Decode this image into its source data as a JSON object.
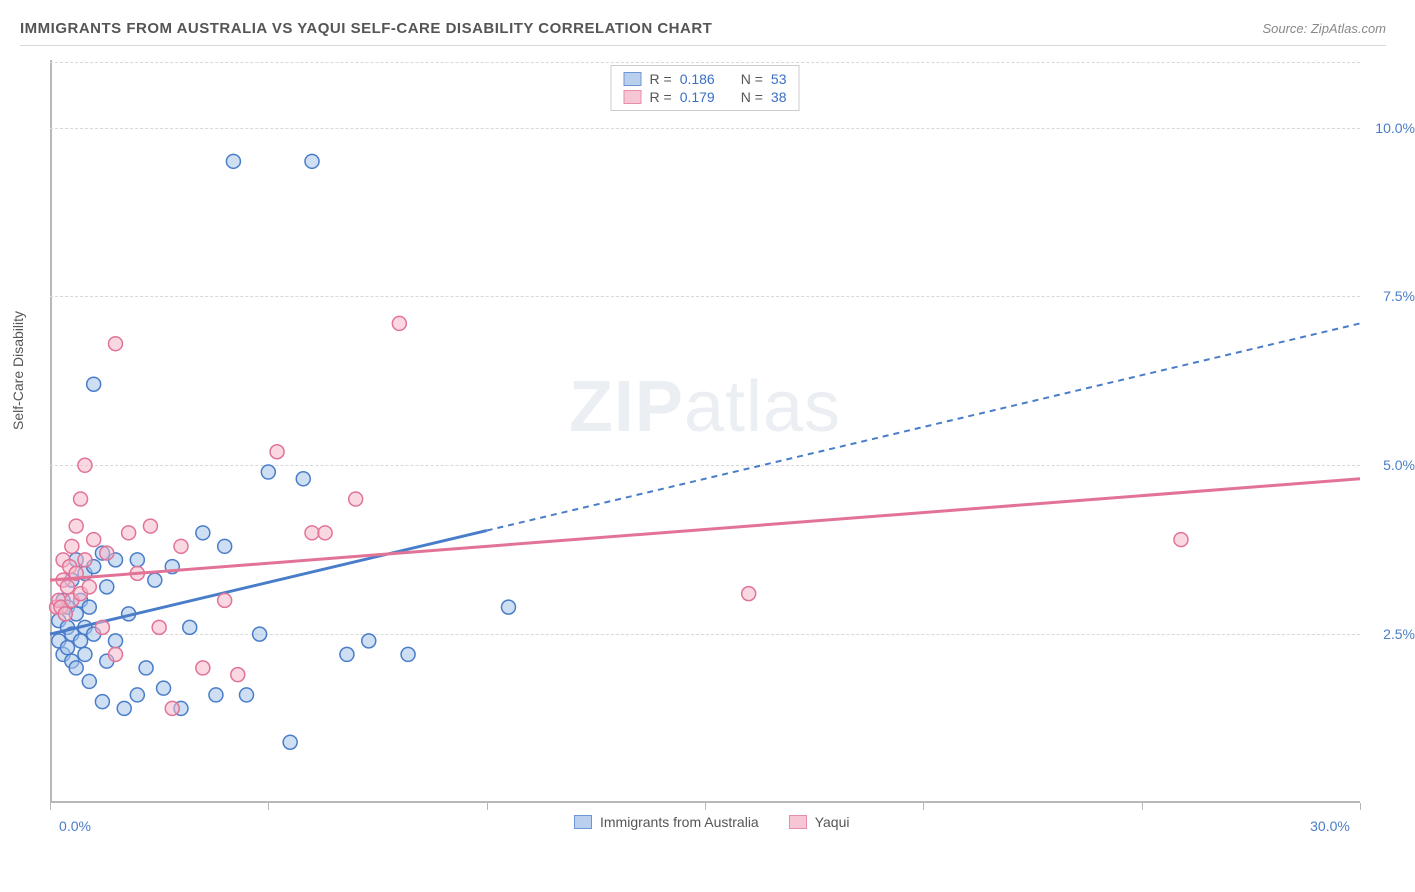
{
  "title": "IMMIGRANTS FROM AUSTRALIA VS YAQUI SELF-CARE DISABILITY CORRELATION CHART",
  "source": "Source: ZipAtlas.com",
  "y_axis_label": "Self-Care Disability",
  "watermark_bold": "ZIP",
  "watermark_rest": "atlas",
  "chart": {
    "type": "scatter",
    "xlim": [
      0,
      30
    ],
    "ylim": [
      0,
      11
    ],
    "x_ticks": [
      0,
      5,
      10,
      15,
      20,
      25,
      30
    ],
    "x_tick_labels": {
      "0": "0.0%",
      "30": "30.0%"
    },
    "y_gridlines": [
      2.5,
      5.0,
      7.5,
      10.0
    ],
    "y_tick_labels": {
      "2.5": "2.5%",
      "5.0": "5.0%",
      "7.5": "7.5%",
      "10.0": "10.0%"
    },
    "background_color": "#ffffff",
    "grid_color": "#d8d8d8",
    "axis_color": "#b8b8b8",
    "tick_label_color": "#4a7dc9",
    "marker_radius": 7,
    "marker_stroke_width": 1.5,
    "marker_fill_opacity": 0.25,
    "series": [
      {
        "name": "Immigrants from Australia",
        "color_stroke": "#4a7dc9",
        "color_fill": "#a7c4ea",
        "R": "0.186",
        "N": "53",
        "trendline": {
          "x1": 0,
          "y1": 2.5,
          "x2": 30,
          "y2": 7.1,
          "solid_until_x": 10
        },
        "points": [
          [
            0.2,
            2.4
          ],
          [
            0.2,
            2.7
          ],
          [
            0.3,
            2.2
          ],
          [
            0.3,
            3.0
          ],
          [
            0.4,
            2.3
          ],
          [
            0.4,
            2.6
          ],
          [
            0.4,
            2.9
          ],
          [
            0.5,
            2.1
          ],
          [
            0.5,
            2.5
          ],
          [
            0.5,
            3.3
          ],
          [
            0.6,
            2.0
          ],
          [
            0.6,
            2.8
          ],
          [
            0.6,
            3.6
          ],
          [
            0.7,
            2.4
          ],
          [
            0.7,
            3.0
          ],
          [
            0.8,
            2.2
          ],
          [
            0.8,
            2.6
          ],
          [
            0.8,
            3.4
          ],
          [
            0.9,
            1.8
          ],
          [
            0.9,
            2.9
          ],
          [
            1.0,
            2.5
          ],
          [
            1.0,
            3.5
          ],
          [
            1.0,
            6.2
          ],
          [
            1.2,
            1.5
          ],
          [
            1.2,
            3.7
          ],
          [
            1.3,
            2.1
          ],
          [
            1.3,
            3.2
          ],
          [
            1.5,
            2.4
          ],
          [
            1.5,
            3.6
          ],
          [
            1.7,
            1.4
          ],
          [
            1.8,
            2.8
          ],
          [
            2.0,
            1.6
          ],
          [
            2.0,
            3.6
          ],
          [
            2.2,
            2.0
          ],
          [
            2.4,
            3.3
          ],
          [
            2.6,
            1.7
          ],
          [
            2.8,
            3.5
          ],
          [
            3.0,
            1.4
          ],
          [
            3.2,
            2.6
          ],
          [
            3.5,
            4.0
          ],
          [
            3.8,
            1.6
          ],
          [
            4.0,
            3.8
          ],
          [
            4.2,
            9.5
          ],
          [
            4.5,
            1.6
          ],
          [
            4.8,
            2.5
          ],
          [
            5.0,
            4.9
          ],
          [
            5.5,
            0.9
          ],
          [
            5.8,
            4.8
          ],
          [
            6.0,
            9.5
          ],
          [
            6.8,
            2.2
          ],
          [
            7.3,
            2.4
          ],
          [
            8.2,
            2.2
          ],
          [
            10.5,
            2.9
          ]
        ]
      },
      {
        "name": "Yaqui",
        "color_stroke": "#e27396",
        "color_fill": "#f4b8ca",
        "R": "0.179",
        "N": "38",
        "trendline": {
          "x1": 0,
          "y1": 3.3,
          "x2": 30,
          "y2": 4.8,
          "solid_until_x": 30
        },
        "points": [
          [
            0.15,
            2.9
          ],
          [
            0.2,
            3.0
          ],
          [
            0.25,
            2.9
          ],
          [
            0.3,
            3.3
          ],
          [
            0.3,
            3.6
          ],
          [
            0.35,
            2.8
          ],
          [
            0.4,
            3.2
          ],
          [
            0.45,
            3.5
          ],
          [
            0.5,
            3.0
          ],
          [
            0.5,
            3.8
          ],
          [
            0.6,
            3.4
          ],
          [
            0.6,
            4.1
          ],
          [
            0.7,
            3.1
          ],
          [
            0.7,
            4.5
          ],
          [
            0.8,
            3.6
          ],
          [
            0.8,
            5.0
          ],
          [
            0.9,
            3.2
          ],
          [
            1.0,
            3.9
          ],
          [
            1.2,
            2.6
          ],
          [
            1.3,
            3.7
          ],
          [
            1.5,
            2.2
          ],
          [
            1.5,
            6.8
          ],
          [
            1.8,
            4.0
          ],
          [
            2.0,
            3.4
          ],
          [
            2.3,
            4.1
          ],
          [
            2.5,
            2.6
          ],
          [
            2.8,
            1.4
          ],
          [
            3.0,
            3.8
          ],
          [
            3.5,
            2.0
          ],
          [
            4.0,
            3.0
          ],
          [
            4.3,
            1.9
          ],
          [
            5.2,
            5.2
          ],
          [
            6.0,
            4.0
          ],
          [
            6.3,
            4.0
          ],
          [
            7.0,
            4.5
          ],
          [
            8.0,
            7.1
          ],
          [
            16.0,
            3.1
          ],
          [
            25.9,
            3.9
          ]
        ]
      }
    ]
  },
  "top_legend_rows": [
    {
      "swatch_series": 0,
      "r_label": "R =",
      "n_label": "N ="
    },
    {
      "swatch_series": 1,
      "r_label": "R =",
      "n_label": "N ="
    }
  ]
}
